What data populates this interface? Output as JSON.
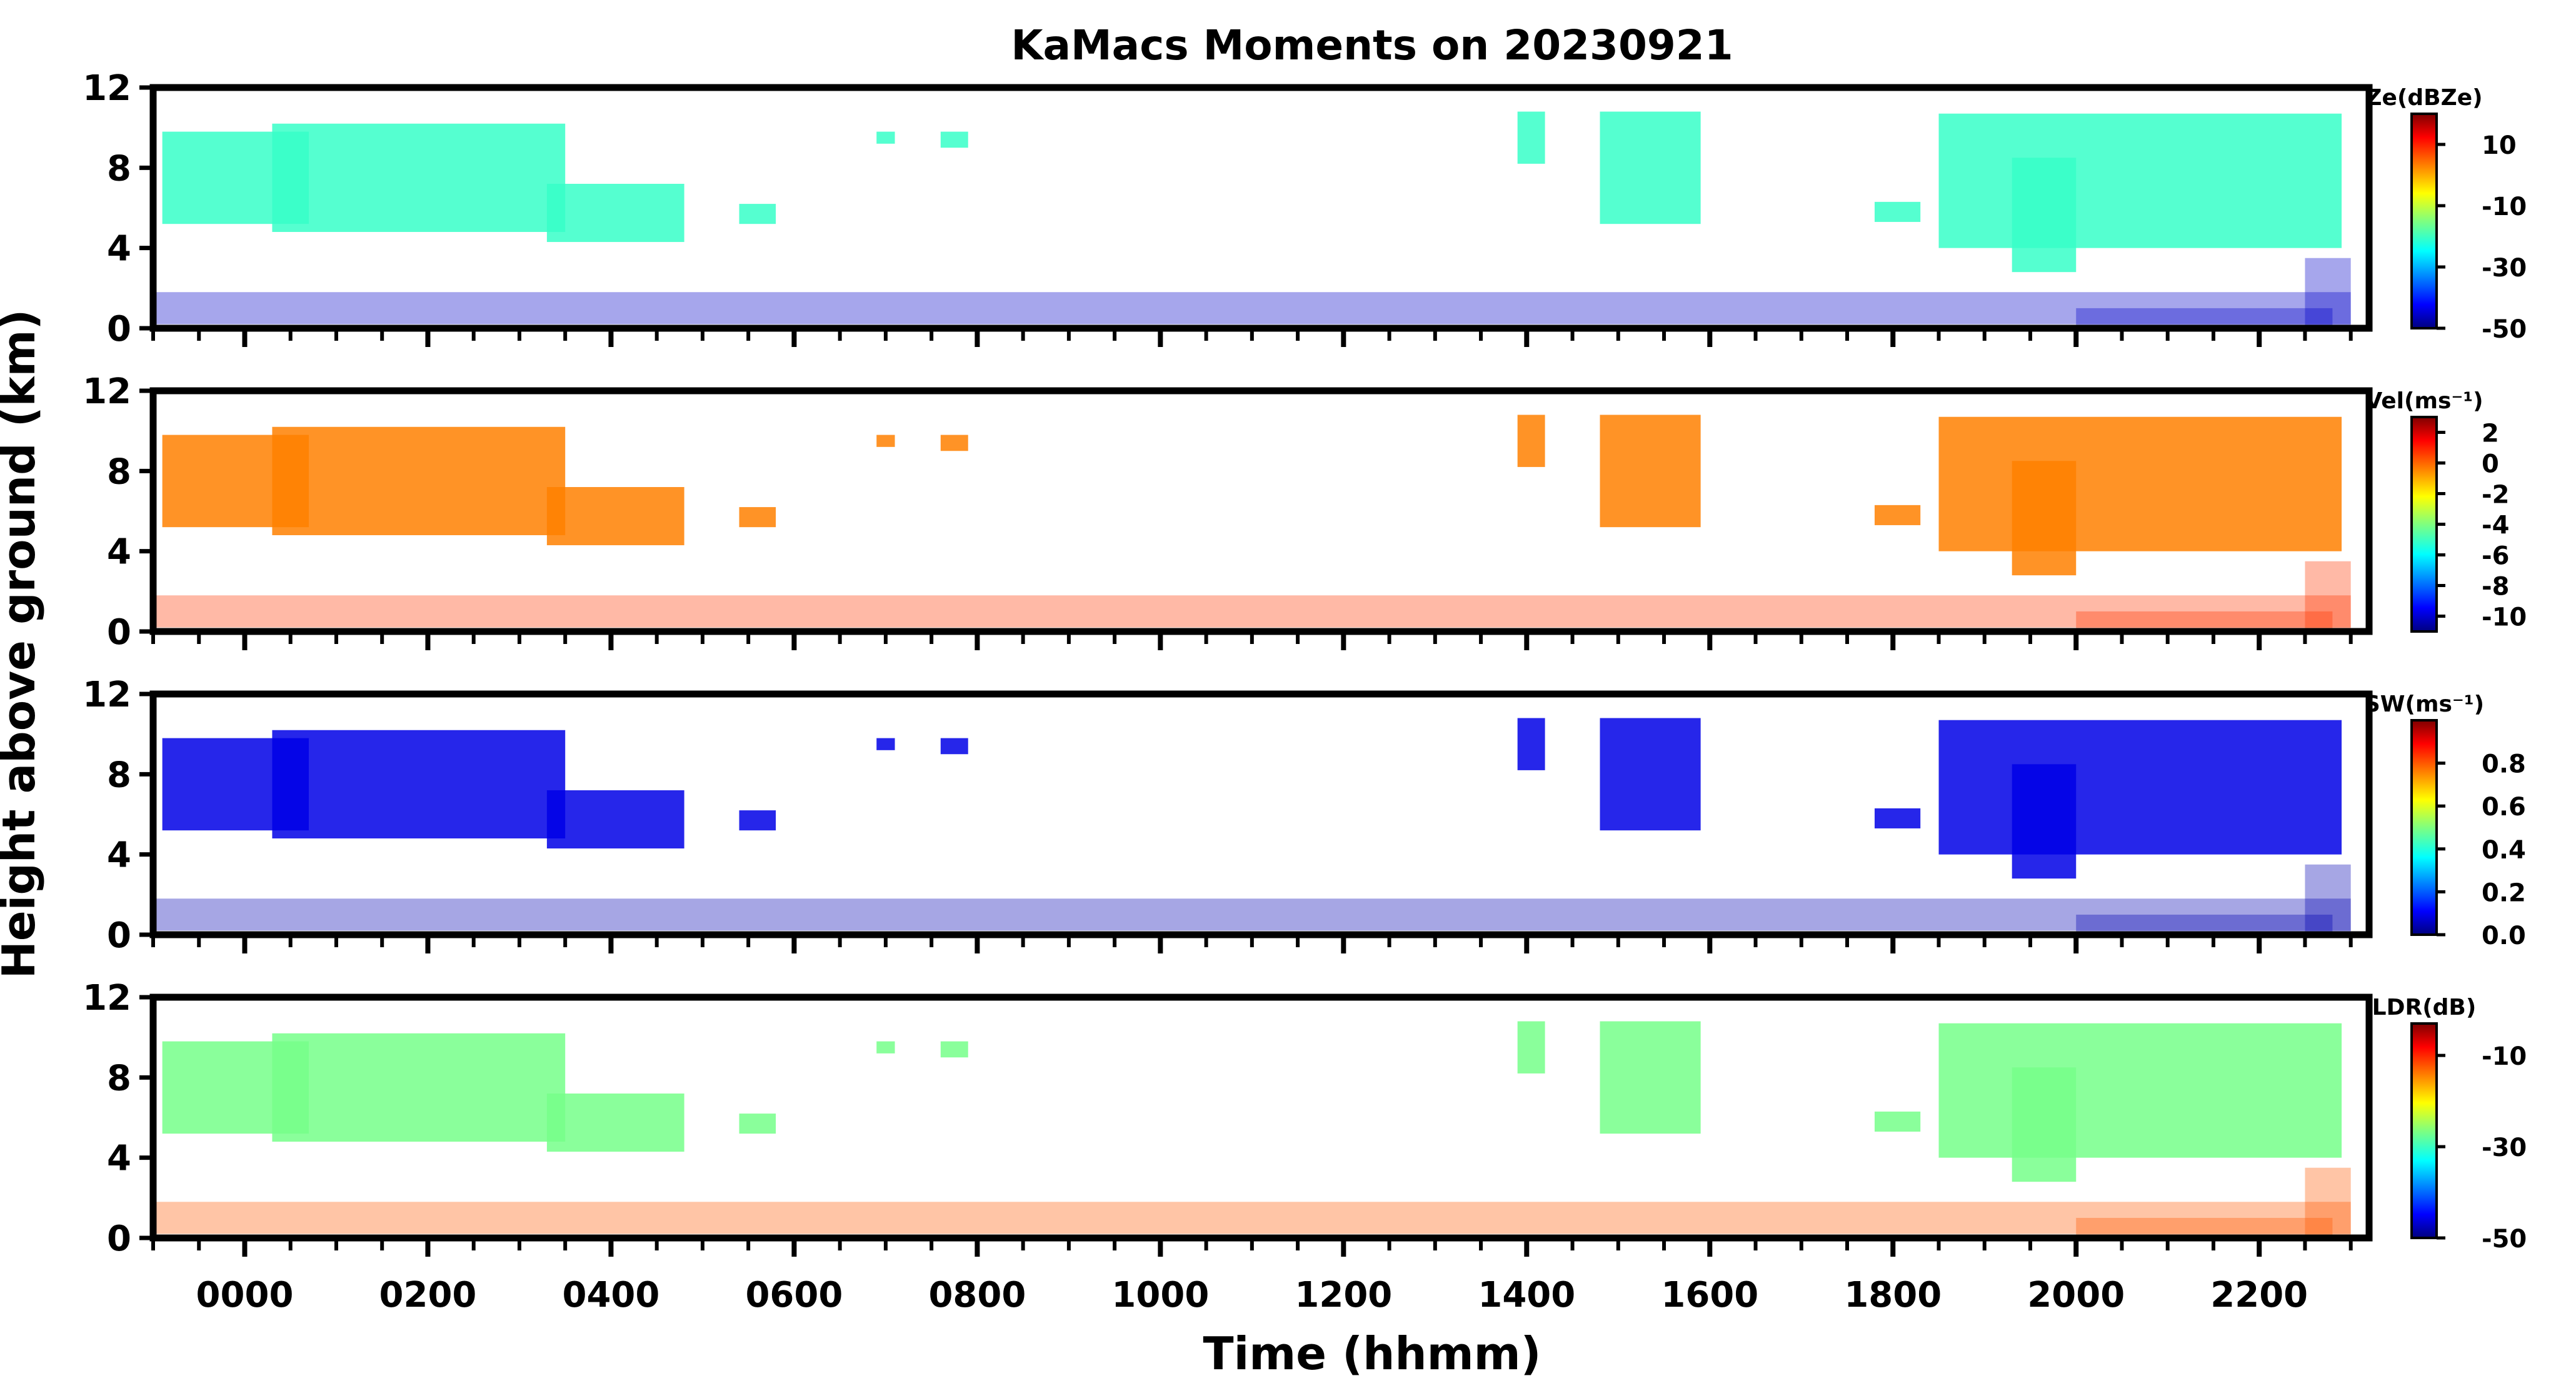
{
  "chart_data": {
    "type": "heatmap",
    "title": "KaMacs Moments on 20230921",
    "xlabel": "Time (hhmm)",
    "ylabel": "Height above ground (km)",
    "x_tick_labels": [
      "0000",
      "0200",
      "0400",
      "0600",
      "0800",
      "1000",
      "1200",
      "1400",
      "1600",
      "1800",
      "2000",
      "2200"
    ],
    "x_tick_values_hours": [
      0,
      2,
      4,
      6,
      8,
      10,
      12,
      14,
      16,
      18,
      20,
      22
    ],
    "xlim_hours": [
      -1,
      23.2
    ],
    "y_ticks": [
      0,
      4,
      8,
      12
    ],
    "ylim": [
      0,
      12
    ],
    "grid": false,
    "colormap": "jet",
    "panels": [
      {
        "name": "Ze",
        "colorbar_label": "Ze(dBZe)",
        "clim": [
          -50,
          20
        ],
        "colorbar_ticks": [
          10,
          -10,
          -30,
          -50
        ],
        "colorbar_tick_labels": [
          "10",
          "-10",
          "-30",
          "-50"
        ],
        "cloud_value": -20,
        "boundary_value": -45
      },
      {
        "name": "Vel",
        "colorbar_label": "Vel(ms⁻¹)",
        "clim": [
          -11,
          3
        ],
        "colorbar_ticks": [
          2,
          0,
          -2,
          -4,
          -6,
          -8,
          -10
        ],
        "colorbar_tick_labels": [
          "2",
          "0",
          "-2",
          "-4",
          "-6",
          "-8",
          "-10"
        ],
        "cloud_value": -0.5,
        "boundary_value": 0.5
      },
      {
        "name": "SW",
        "colorbar_label": "SW(ms⁻¹)",
        "clim": [
          0,
          1
        ],
        "colorbar_ticks": [
          0.8,
          0.6,
          0.4,
          0.2,
          0.0
        ],
        "colorbar_tick_labels": [
          "0.8",
          "0.6",
          "0.4",
          "0.2",
          "0.0"
        ],
        "cloud_value": 0.1,
        "boundary_value": 0.05
      },
      {
        "name": "LDR",
        "colorbar_label": "LDR(dB)",
        "clim": [
          -50,
          -3
        ],
        "colorbar_ticks": [
          -10,
          -30,
          -50
        ],
        "colorbar_tick_labels": [
          "-10",
          "-30",
          "-50"
        ],
        "cloud_value": -27,
        "boundary_value": -13
      }
    ],
    "echo_regions": [
      {
        "t0": -0.9,
        "t1": 0.7,
        "z0": 5.2,
        "z1": 9.8
      },
      {
        "t0": 0.3,
        "t1": 3.5,
        "z0": 4.8,
        "z1": 10.2
      },
      {
        "t0": 3.3,
        "t1": 4.8,
        "z0": 4.3,
        "z1": 7.2
      },
      {
        "t0": 5.4,
        "t1": 5.8,
        "z0": 5.2,
        "z1": 6.2
      },
      {
        "t0": 6.9,
        "t1": 7.1,
        "z0": 9.2,
        "z1": 9.8
      },
      {
        "t0": 7.6,
        "t1": 7.9,
        "z0": 9.0,
        "z1": 9.8
      },
      {
        "t0": 13.9,
        "t1": 14.2,
        "z0": 8.2,
        "z1": 10.8
      },
      {
        "t0": 14.8,
        "t1": 15.9,
        "z0": 5.2,
        "z1": 10.8
      },
      {
        "t0": 17.8,
        "t1": 18.3,
        "z0": 5.3,
        "z1": 6.3
      },
      {
        "t0": 18.5,
        "t1": 22.9,
        "z0": 4.0,
        "z1": 10.7
      },
      {
        "t0": 19.3,
        "t1": 20.0,
        "z0": 2.8,
        "z1": 8.5
      }
    ],
    "boundary_layer": [
      {
        "t0": -1.0,
        "t1": 23.0,
        "z0": 0.2,
        "z1": 1.8
      },
      {
        "t0": 20.0,
        "t1": 22.8,
        "z0": 0.1,
        "z1": 1.0
      },
      {
        "t0": 22.5,
        "t1": 23.0,
        "z0": 0.0,
        "z1": 3.5
      }
    ]
  }
}
